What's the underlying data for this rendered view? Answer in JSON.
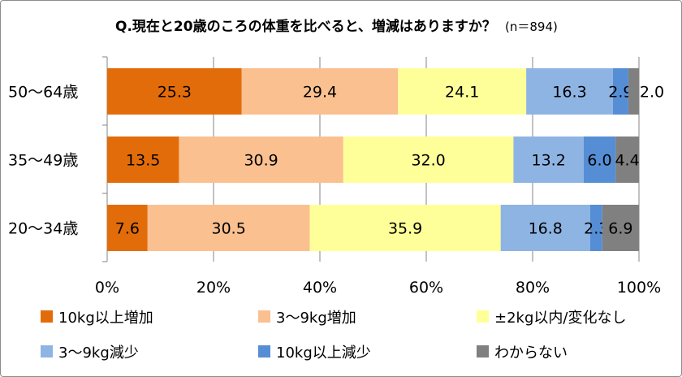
{
  "chart_data": {
    "type": "bar",
    "orientation": "horizontal",
    "stacked": "percent",
    "title": "Q.現在と20歳のころの体重を比べると、増減はありますか？",
    "subtitle": "(n＝894)",
    "categories": [
      "50〜64歳",
      "35〜49歳",
      "20〜34歳"
    ],
    "series": [
      {
        "name": "10kg以上増加",
        "color": "#E36C0A",
        "values": [
          25.3,
          13.5,
          7.6
        ]
      },
      {
        "name": "3〜9kg増加",
        "color": "#FAC090",
        "values": [
          29.4,
          30.9,
          30.5
        ]
      },
      {
        "name": "±2kg以内/変化なし",
        "color": "#FFFF99",
        "values": [
          24.1,
          32.0,
          35.9
        ]
      },
      {
        "name": "3〜9kg減少",
        "color": "#8EB4E3",
        "values": [
          16.3,
          13.2,
          16.8
        ]
      },
      {
        "name": "10kg以上減少",
        "color": "#558ED5",
        "values": [
          2.9,
          6.0,
          2.3
        ]
      },
      {
        "name": "わからない",
        "color": "#808080",
        "values": [
          2.0,
          4.4,
          6.9
        ]
      }
    ],
    "xlim": [
      0,
      100
    ],
    "xticks": [
      "0%",
      "20%",
      "40%",
      "60%",
      "80%",
      "100%"
    ],
    "grid": true,
    "legend": "bottom"
  }
}
